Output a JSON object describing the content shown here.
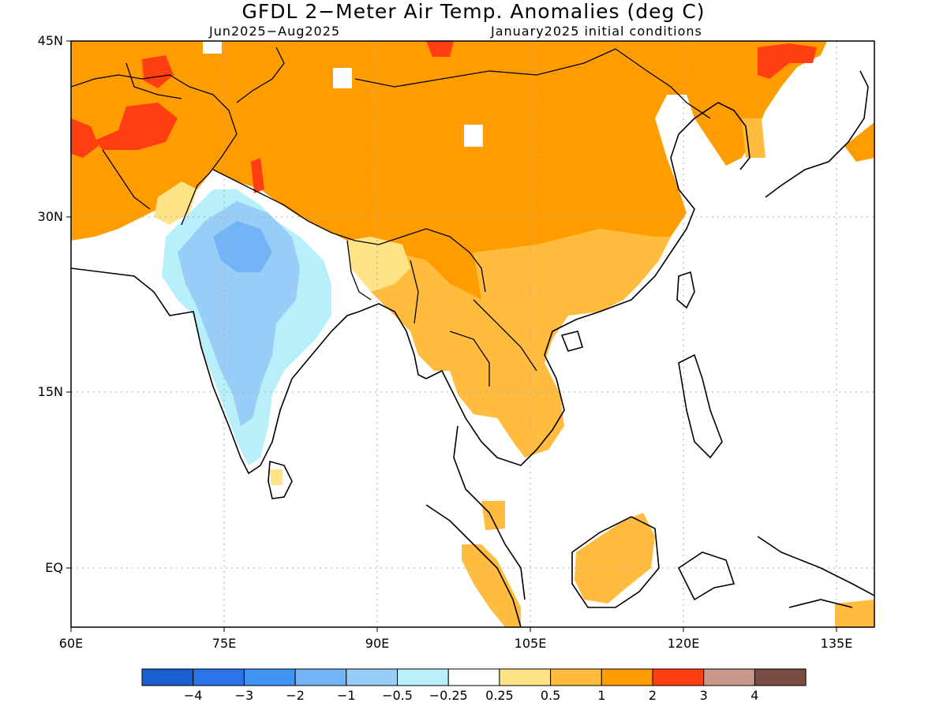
{
  "title": "GFDL 2−Meter Air Temp. Anomalies (deg C)",
  "subtitle_left": "Jun2025−Aug2025",
  "subtitle_right": "January2025 initial conditions",
  "lat_labels": [
    "45N",
    "30N",
    "15N",
    "EQ"
  ],
  "lon_labels": [
    "60E",
    "75E",
    "90E",
    "105E",
    "120E",
    "135E"
  ],
  "colorbar": {
    "colors": [
      "#1a5fd0",
      "#2a73e8",
      "#3f94f2",
      "#72b4f6",
      "#98cdf8",
      "#b7effa",
      "#ffffff",
      "#ffe387",
      "#ffbc3e",
      "#ff9c00",
      "#ff3e12",
      "#c8998b",
      "#7a4c41"
    ],
    "labels": [
      "−4",
      "−3",
      "−2",
      "−1",
      "−0.5",
      "−0.25",
      "0.25",
      "0.5",
      "1",
      "2",
      "3",
      "4"
    ]
  },
  "map_colors": {
    "orange": "#ff9c00",
    "light_orange": "#ffbc3e",
    "yellow": "#ffe387",
    "red": "#ff3e12",
    "cyan": "#b7effa",
    "light_blue": "#98cdf8",
    "mid_blue": "#72b4f6"
  }
}
